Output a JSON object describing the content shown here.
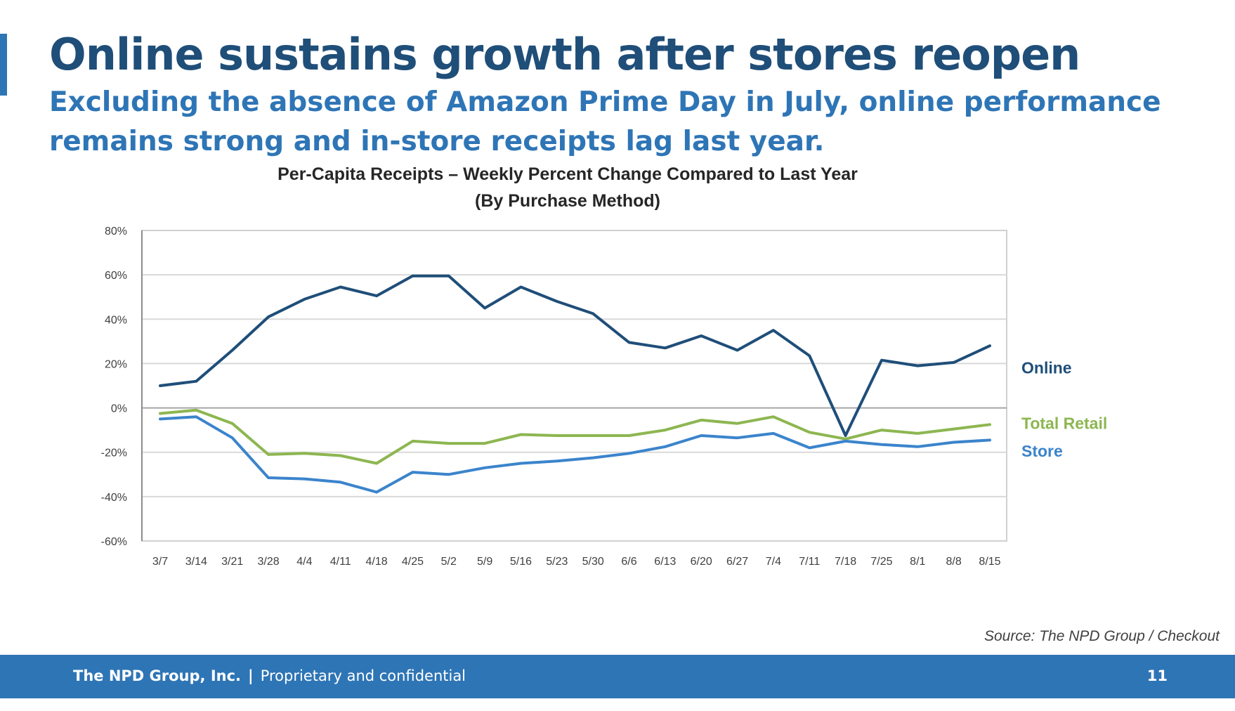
{
  "slide": {
    "title": "Online sustains growth after stores reopen",
    "subtitle_line1": "Excluding the absence of Amazon Prime Day in July, online performance",
    "subtitle_line2": "remains strong and in-store receipts lag last year.",
    "source": "Source: The NPD Group / Checkout"
  },
  "footer": {
    "company": "The NPD Group, Inc.",
    "separator": "|",
    "note": "Proprietary and confidential",
    "page_number": "11"
  },
  "colors": {
    "title": "#1f4e79",
    "subtitle": "#2e75b6",
    "footer_bg": "#2e75b6",
    "online": "#1f4e79",
    "total_retail": "#8db651",
    "store": "#3b84cc"
  },
  "chart_data": {
    "type": "line",
    "title_line1": "Per-Capita Receipts – Weekly Percent Change Compared to Last Year",
    "title_line2": "(By Purchase Method)",
    "x": [
      "3/7",
      "3/14",
      "3/21",
      "3/28",
      "4/4",
      "4/11",
      "4/18",
      "4/25",
      "5/2",
      "5/9",
      "5/16",
      "5/23",
      "5/30",
      "6/6",
      "6/13",
      "6/20",
      "6/27",
      "7/4",
      "7/11",
      "7/18",
      "7/25",
      "8/1",
      "8/8",
      "8/15"
    ],
    "ylim": [
      -60,
      80
    ],
    "yticks": [
      80,
      60,
      40,
      20,
      0,
      -20,
      -40,
      -60
    ],
    "ytick_labels": [
      "80%",
      "60%",
      "40%",
      "20%",
      "0%",
      "-20%",
      "-40%",
      "-60%"
    ],
    "grid": true,
    "legend": "right, labels at line ends",
    "series": [
      {
        "name": "Online",
        "color": "#1f4e79",
        "values": [
          10,
          12,
          26,
          41,
          49,
          54.5,
          50.5,
          59.5,
          59.5,
          45,
          54.5,
          48,
          42.5,
          29.5,
          27,
          32.5,
          26,
          35,
          23.5,
          -12.5,
          21.5,
          19,
          20.5,
          28
        ]
      },
      {
        "name": "Total Retail",
        "color": "#8db651",
        "values": [
          -2.5,
          -1,
          -7,
          -21,
          -20.5,
          -21.5,
          -25,
          -15,
          -16,
          -16,
          -12,
          -12.5,
          -12.5,
          -12.5,
          -10,
          -5.5,
          -7,
          -4,
          -11,
          -14,
          -10,
          -11.5,
          -9.5,
          -7.5
        ]
      },
      {
        "name": "Store",
        "color": "#3b84cc",
        "values": [
          -5,
          -4,
          -13.5,
          -31.5,
          -32,
          -33.5,
          -38,
          -29,
          -30,
          -27,
          -25,
          -24,
          -22.5,
          -20.5,
          -17.5,
          -12.5,
          -13.5,
          -11.5,
          -18,
          -15,
          -16.5,
          -17.5,
          -15.5,
          -14.5
        ]
      }
    ]
  }
}
